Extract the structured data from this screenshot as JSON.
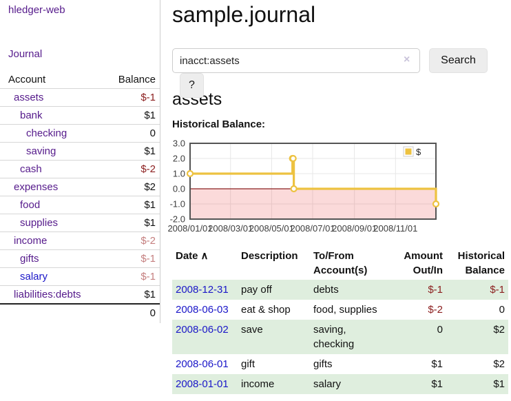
{
  "sidebar": {
    "app_title": "hledger-web",
    "journal_link": "Journal",
    "accounts": {
      "headers": {
        "account": "Account",
        "balance": "Balance"
      },
      "rows": [
        {
          "name": "assets",
          "depth": 1,
          "bold": true,
          "balance": "$-1",
          "balance_style": "neg-strong"
        },
        {
          "name": "bank",
          "depth": 2,
          "bold": true,
          "balance": "$1",
          "balance_style": "normal"
        },
        {
          "name": "checking",
          "depth": 3,
          "bold": true,
          "balance": "0",
          "balance_style": "normal"
        },
        {
          "name": "saving",
          "depth": 3,
          "bold": true,
          "balance": "$1",
          "balance_style": "normal"
        },
        {
          "name": "cash",
          "depth": 2,
          "bold": true,
          "balance": "$-2",
          "balance_style": "neg-strong"
        },
        {
          "name": "expenses",
          "depth": 1,
          "bold": false,
          "balance": "$2",
          "balance_style": "normal"
        },
        {
          "name": "food",
          "depth": 2,
          "bold": false,
          "balance": "$1",
          "balance_style": "normal"
        },
        {
          "name": "supplies",
          "depth": 2,
          "bold": false,
          "balance": "$1",
          "balance_style": "normal"
        },
        {
          "name": "income",
          "depth": 1,
          "bold": false,
          "balance": "$-2",
          "balance_style": "neg-weak"
        },
        {
          "name": "gifts",
          "depth": 2,
          "bold": false,
          "balance": "$-1",
          "balance_style": "neg-weak"
        },
        {
          "name": "salary",
          "depth": 2,
          "bold": false,
          "link_style": "blue",
          "balance": "$-1",
          "balance_style": "neg-weak"
        },
        {
          "name": "liabilities:debts",
          "depth": 1,
          "bold": false,
          "balance": "$1",
          "balance_style": "normal"
        }
      ],
      "total": "0"
    }
  },
  "header": {
    "title": "sample.journal"
  },
  "search": {
    "value": "inacct:assets",
    "clear_icon": "×",
    "search_button": "Search",
    "help_button": "?"
  },
  "account_page": {
    "heading": "assets",
    "chart_label": "Historical Balance:"
  },
  "chart_data": {
    "type": "line",
    "step": true,
    "title": "Historical Balance:",
    "series": [
      {
        "name": "$",
        "color": "#edc240",
        "points": [
          [
            "2008-01-01",
            1
          ],
          [
            "2008-06-01",
            2
          ],
          [
            "2008-06-02",
            2
          ],
          [
            "2008-06-03",
            0
          ],
          [
            "2008-12-31",
            -1
          ]
        ]
      }
    ],
    "x_range": [
      "2008-01-01",
      "2008-12-31"
    ],
    "ylim": [
      -2,
      3
    ],
    "x_ticks": [
      "2008/01/01",
      "2008/03/01",
      "2008/05/01",
      "2008/07/01",
      "2008/09/01",
      "2008/11/01"
    ],
    "y_ticks": [
      "3.0",
      "2.0",
      "1.0",
      "0.0",
      "-1.0",
      "-2.0"
    ],
    "legend": {
      "label": "$",
      "position": "top-right"
    },
    "grid": true,
    "grid_color": "#e7e7e7",
    "border_color": "#545454",
    "zero_line_color": "#8b2020",
    "negative_region_color": "rgba(235,70,70,0.2)",
    "marker_fill": "#ffffff"
  },
  "register": {
    "headers": [
      {
        "lines": [
          "Date"
        ],
        "sort_icon": "∧",
        "align": "left"
      },
      {
        "lines": [
          "Description"
        ],
        "align": "left"
      },
      {
        "lines": [
          "To/From",
          "Account(s)"
        ],
        "align": "left"
      },
      {
        "lines": [
          "Amount",
          "Out/In"
        ],
        "align": "right"
      },
      {
        "lines": [
          "Historical",
          "Balance"
        ],
        "align": "right"
      }
    ],
    "rows": [
      {
        "date": "2008-12-31",
        "description": "pay off",
        "accounts": "debts",
        "amount": "$-1",
        "amount_neg": true,
        "balance": "$-1",
        "balance_neg": true
      },
      {
        "date": "2008-06-03",
        "description": "eat & shop",
        "accounts": "food, supplies",
        "amount": "$-2",
        "amount_neg": true,
        "balance": "0",
        "balance_neg": false
      },
      {
        "date": "2008-06-02",
        "description": "save",
        "accounts": "saving, checking",
        "amount": "0",
        "amount_neg": false,
        "balance": "$2",
        "balance_neg": false
      },
      {
        "date": "2008-06-01",
        "description": "gift",
        "accounts": "gifts",
        "amount": "$1",
        "amount_neg": false,
        "balance": "$2",
        "balance_neg": false
      },
      {
        "date": "2008-01-01",
        "description": "income",
        "accounts": "salary",
        "amount": "$1",
        "amount_neg": false,
        "balance": "$1",
        "balance_neg": false
      }
    ]
  },
  "colors": {
    "link_purple": "#551a8b",
    "link_blue": "#1a16c8",
    "negative_strong": "#8b1d1d",
    "negative_weak": "#c57f7f",
    "row_stripe_green": "#dfeede",
    "series_gold": "#edc240"
  }
}
